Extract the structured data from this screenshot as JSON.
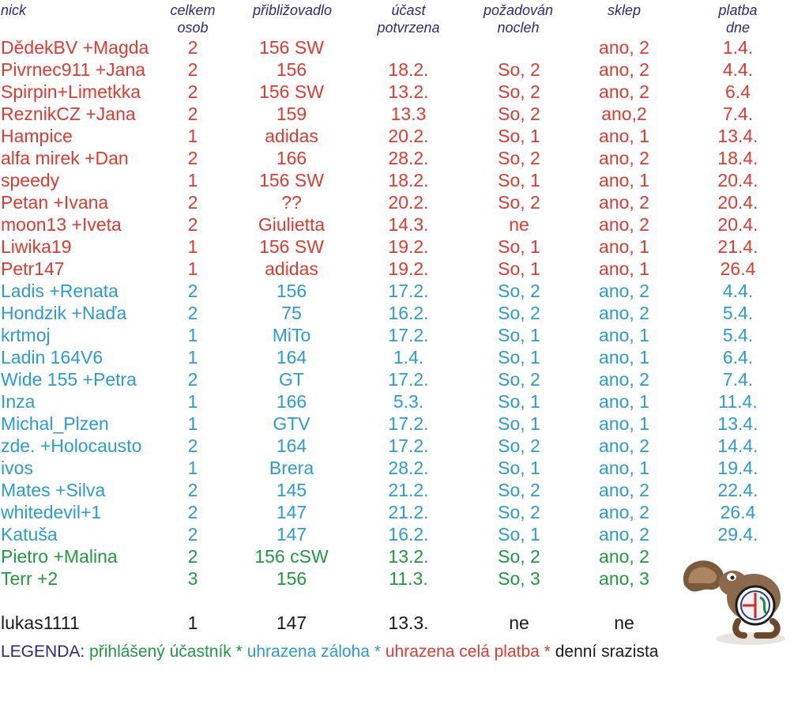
{
  "headers": {
    "nick": "nick",
    "celkem": "celkem osob",
    "priblizovadlo": "přibližovadlo",
    "ucast": "účast potvrzena",
    "nocleh": "požadován nocleh",
    "sklep": "sklep",
    "platba": "platba dne"
  },
  "colors": {
    "red": "#e03a2e",
    "blue": "#2a9bd5",
    "green": "#1e9a3e",
    "black": "#1a1a1a",
    "header": "#2b2a7e"
  },
  "rows": [
    {
      "status": "red",
      "nick": "DědekBV +Magda",
      "osob": "2",
      "auto": "156 SW",
      "ucast": "",
      "nocleh": "",
      "sklep": "ano, 2",
      "platba": "1.4."
    },
    {
      "status": "red",
      "nick": "Pivrnec911 +Jana",
      "osob": "2",
      "auto": "156",
      "ucast": "18.2.",
      "nocleh": "So, 2",
      "sklep": "ano, 2",
      "platba": "4.4."
    },
    {
      "status": "red",
      "nick": "Spirpin+Limetkka",
      "osob": "2",
      "auto": "156 SW",
      "ucast": "13.2.",
      "nocleh": "So, 2",
      "sklep": "ano, 2",
      "platba": "6.4"
    },
    {
      "status": "red",
      "nick": "ReznikCZ +Jana",
      "osob": "2",
      "auto": "159",
      "ucast": "13.3",
      "nocleh": "So, 2",
      "sklep": "ano,2",
      "platba": "7.4."
    },
    {
      "status": "red",
      "nick": "Hampice",
      "osob": "1",
      "auto": "adidas",
      "ucast": "20.2.",
      "nocleh": "So, 1",
      "sklep": "ano, 1",
      "platba": "13.4."
    },
    {
      "status": "red",
      "nick": "alfa mirek +Dan",
      "osob": "2",
      "auto": "166",
      "ucast": "28.2.",
      "nocleh": "So, 2",
      "sklep": "ano, 2",
      "platba": "18.4."
    },
    {
      "status": "red",
      "nick": "speedy",
      "osob": "1",
      "auto": "156 SW",
      "ucast": "18.2.",
      "nocleh": "So, 1",
      "sklep": "ano, 1",
      "platba": "20.4."
    },
    {
      "status": "red",
      "nick": "Petan +Ivana",
      "osob": "2",
      "auto": "??",
      "ucast": "20.2.",
      "nocleh": "So, 2",
      "sklep": "ano, 2",
      "platba": "20.4."
    },
    {
      "status": "red",
      "nick": "moon13 +Iveta",
      "osob": "2",
      "auto": "Giulietta",
      "ucast": "14.3.",
      "nocleh": "ne",
      "sklep": "ano, 2",
      "platba": "20.4."
    },
    {
      "status": "red",
      "nick": "Liwika19",
      "osob": "1",
      "auto": "156 SW",
      "ucast": "19.2.",
      "nocleh": "So, 1",
      "sklep": "ano, 1",
      "platba": "21.4."
    },
    {
      "status": "red",
      "nick": "Petr147",
      "osob": "1",
      "auto": "adidas",
      "ucast": "19.2.",
      "nocleh": "So, 1",
      "sklep": "ano, 1",
      "platba": "26.4"
    },
    {
      "status": "blue",
      "nick": "Ladis +Renata",
      "osob": "2",
      "auto": "156",
      "ucast": "17.2.",
      "nocleh": "So, 2",
      "sklep": "ano, 2",
      "platba": "4.4."
    },
    {
      "status": "blue",
      "nick": "Hondzik +Naďa",
      "osob": "2",
      "auto": "75",
      "ucast": "16.2.",
      "nocleh": "So, 2",
      "sklep": "ano, 2",
      "platba": "5.4."
    },
    {
      "status": "blue",
      "nick": "krtmoj",
      "osob": "1",
      "auto": "MiTo",
      "ucast": "17.2.",
      "nocleh": "So, 1",
      "sklep": "ano, 1",
      "platba": "5.4."
    },
    {
      "status": "blue",
      "nick": "Ladin 164V6",
      "osob": "1",
      "auto": "164",
      "ucast": "1.4.",
      "nocleh": "So, 1",
      "sklep": "ano, 1",
      "platba": "6.4."
    },
    {
      "status": "blue",
      "nick": "Wide 155 +Petra",
      "osob": "2",
      "auto": "GT",
      "ucast": "17.2.",
      "nocleh": "So, 2",
      "sklep": "ano, 2",
      "platba": "7.4."
    },
    {
      "status": "blue",
      "nick": "Inza",
      "osob": "1",
      "auto": "166",
      "ucast": "5.3.",
      "nocleh": "So, 1",
      "sklep": "ano, 1",
      "platba": "11.4."
    },
    {
      "status": "blue",
      "nick": "Michal_Plzen",
      "osob": "1",
      "auto": "GTV",
      "ucast": "17.2.",
      "nocleh": "So, 1",
      "sklep": "ano, 1",
      "platba": "13.4."
    },
    {
      "status": "blue",
      "nick": "zde. +Holocausto",
      "osob": "2",
      "auto": "164",
      "ucast": "17.2.",
      "nocleh": "So, 2",
      "sklep": "ano, 2",
      "platba": "14.4."
    },
    {
      "status": "blue",
      "nick": "ivos",
      "osob": "1",
      "auto": "Brera",
      "ucast": "28.2.",
      "nocleh": "So, 1",
      "sklep": "ano, 1",
      "platba": "19.4."
    },
    {
      "status": "blue",
      "nick": "Mates +Silva",
      "osob": "2",
      "auto": "145",
      "ucast": "21.2.",
      "nocleh": "So, 2",
      "sklep": "ano, 2",
      "platba": "22.4."
    },
    {
      "status": "blue",
      "nick": "whitedevil+1",
      "osob": "2",
      "auto": "147",
      "ucast": "21.2.",
      "nocleh": "So, 2",
      "sklep": "ano, 2",
      "platba": "26.4"
    },
    {
      "status": "blue",
      "nick": "Katuša",
      "osob": "2",
      "auto": "147",
      "ucast": "16.2.",
      "nocleh": "So, 1",
      "sklep": "ano, 2",
      "platba": "29.4."
    },
    {
      "status": "green",
      "nick": "Pietro +Malina",
      "osob": "2",
      "auto": "156 cSW",
      "ucast": "13.2.",
      "nocleh": "So, 2",
      "sklep": "ano, 2",
      "platba": ""
    },
    {
      "status": "green",
      "nick": "Terr +2",
      "osob": "3",
      "auto": "156",
      "ucast": "11.3.",
      "nocleh": "So, 3",
      "sklep": "ano, 3",
      "platba": ""
    },
    {
      "status": "black",
      "nick": "lukas1111",
      "osob": "1",
      "auto": "147",
      "ucast": "13.3.",
      "nocleh": "ne",
      "sklep": "ne",
      "platba": ""
    }
  ],
  "legend": {
    "label": "LEGENDA:",
    "green": "přihlášený účastník",
    "sep1": "*",
    "blue": "uhrazena záloha",
    "sep2": "*",
    "red": "uhrazena celá platba",
    "sep3": "*",
    "black": "denní srazista"
  },
  "mascot": {
    "icon": "squirrel-alfa-romeo-logo-icon"
  }
}
